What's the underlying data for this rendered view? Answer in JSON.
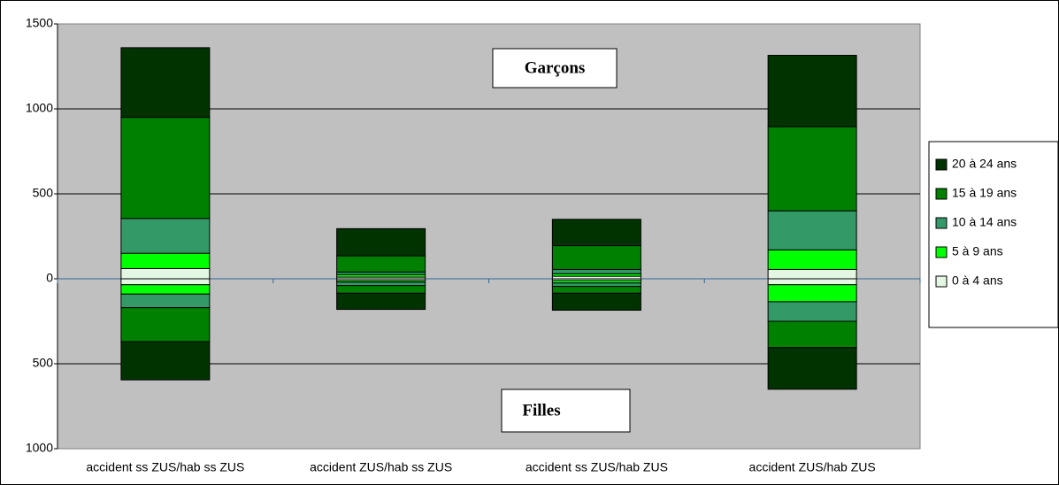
{
  "chart_data": {
    "type": "diverging-stacked-bar",
    "categories": [
      "accident ss ZUS/hab ss ZUS",
      "accident  ZUS/hab ss ZUS",
      "accident ss ZUS/hab ZUS",
      "accident ZUS/hab ZUS"
    ],
    "annotations": [
      "Garçons",
      "Filles"
    ],
    "series": [
      {
        "name": "0 à 4 ans",
        "color": "#e3f7e3",
        "values": [
          60,
          10,
          15,
          55
        ],
        "values_filles": [
          -35,
          -10,
          -10,
          -35
        ]
      },
      {
        "name": "5 à 9 ans",
        "color": "#00ff00",
        "values": [
          90,
          15,
          15,
          115
        ],
        "values_filles": [
          -55,
          -10,
          -15,
          -100
        ]
      },
      {
        "name": "10 à 14 ans",
        "color": "#339966",
        "values": [
          205,
          15,
          25,
          230
        ],
        "values_filles": [
          -80,
          -20,
          -20,
          -115
        ]
      },
      {
        "name": "15 à 19 ans",
        "color": "#008000",
        "values": [
          595,
          95,
          140,
          495
        ],
        "values_filles": [
          -200,
          -45,
          -40,
          -155
        ]
      },
      {
        "name": "20 à 24 ans",
        "color": "#003300",
        "values": [
          410,
          160,
          155,
          420
        ],
        "values_filles": [
          -225,
          -95,
          -100,
          -245
        ]
      }
    ],
    "ylim": [
      -1000,
      1500
    ],
    "yticks": [
      1500,
      1000,
      500,
      0,
      {
        "value": -500,
        "label": "500"
      },
      {
        "value": -1000,
        "label": "1000"
      }
    ],
    "negative_tick_color": "#ff0000",
    "grid": true,
    "legend": "right"
  }
}
